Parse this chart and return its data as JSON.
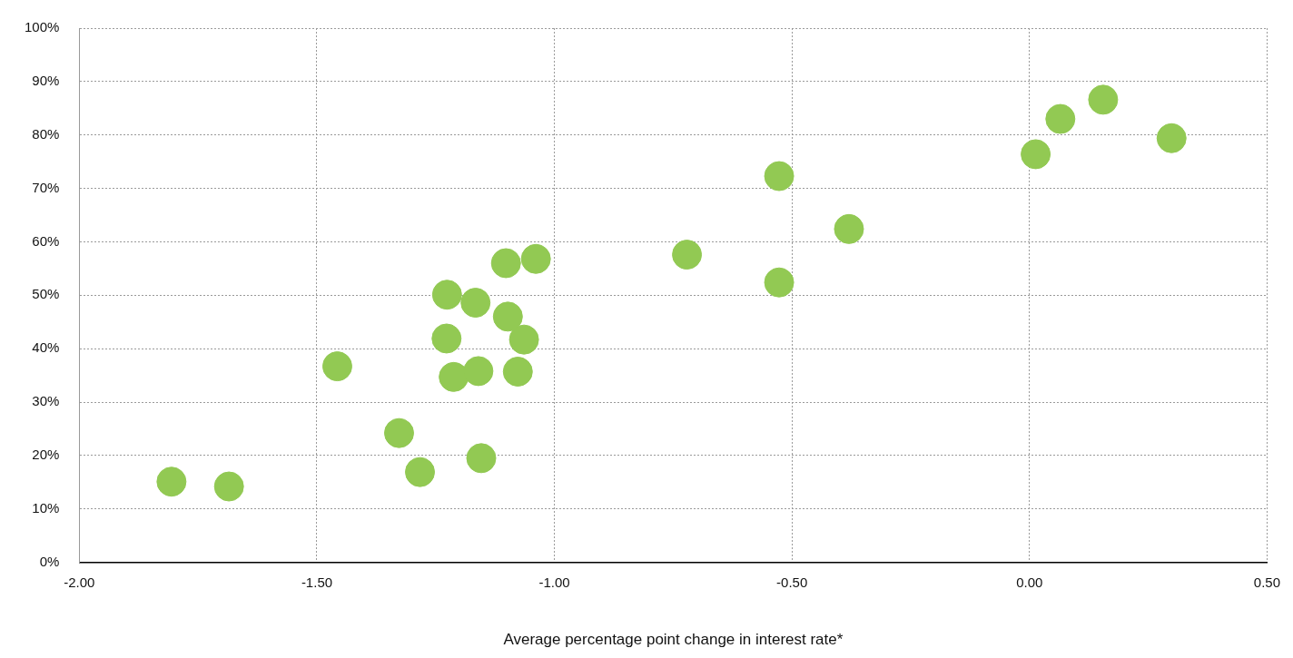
{
  "chart_data": {
    "type": "scatter",
    "xlabel": "Average percentage point change in interest rate*",
    "x": [
      -1.806,
      -1.685,
      -1.457,
      -1.327,
      -1.283,
      -1.226,
      -1.227,
      -1.212,
      -1.166,
      -1.16,
      -1.154,
      -1.102,
      -1.098,
      -1.077,
      -1.064,
      -1.039,
      -0.721,
      -0.527,
      -0.527,
      -0.38,
      0.013,
      0.065,
      0.155,
      0.299
    ],
    "values": [
      15.1,
      14.2,
      36.7,
      24.2,
      16.9,
      50.1,
      41.9,
      34.7,
      48.6,
      35.8,
      19.5,
      56.0,
      46.0,
      35.7,
      41.7,
      56.8,
      57.6,
      72.3,
      52.4,
      62.4,
      76.4,
      83.0,
      86.6,
      79.4
    ],
    "color": "#92c953",
    "marker": "circle",
    "grid": true,
    "legend": false,
    "xlim": [
      -2,
      0.5
    ],
    "xticks": [
      {
        "value": -2,
        "label": "-2.00"
      },
      {
        "value": -1.5,
        "label": "-1.50"
      },
      {
        "value": -1,
        "label": "-1.00"
      },
      {
        "value": -0.5,
        "label": "-0.50"
      },
      {
        "value": 0,
        "label": "0.00"
      },
      {
        "value": 0.5,
        "label": "0.50"
      }
    ],
    "ylim": [
      0,
      100
    ],
    "yticks": [
      {
        "value": 0,
        "label": "0%"
      },
      {
        "value": 10,
        "label": "10%"
      },
      {
        "value": 20,
        "label": "20%"
      },
      {
        "value": 30,
        "label": "30%"
      },
      {
        "value": 40,
        "label": "40%"
      },
      {
        "value": 50,
        "label": "50%"
      },
      {
        "value": 60,
        "label": "60%"
      },
      {
        "value": 70,
        "label": "70%"
      },
      {
        "value": 80,
        "label": "80%"
      },
      {
        "value": 90,
        "label": "90%"
      },
      {
        "value": 100,
        "label": "100%"
      }
    ]
  }
}
